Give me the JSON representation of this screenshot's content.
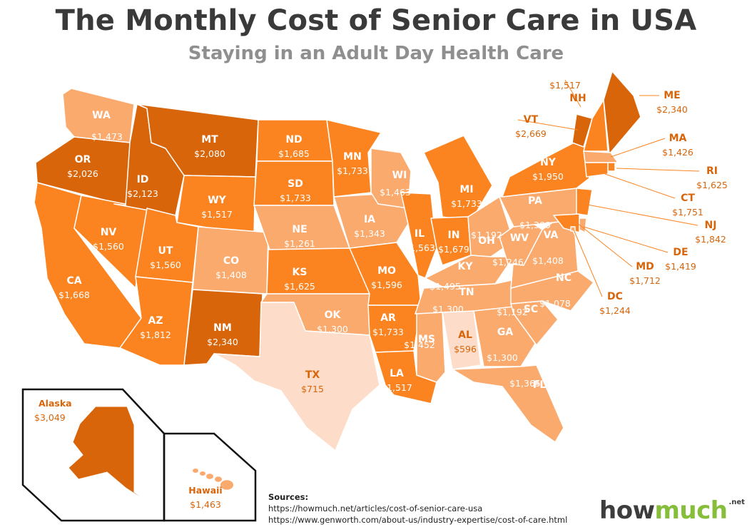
{
  "title": "The Monthly Cost of Senior Care in USA",
  "subtitle": "Staying in an Adult Day Health Care",
  "colors": {
    "darkest": "#d9650a",
    "dark": "#fb8421",
    "medium": "#fbaa6e",
    "light": "#fcc8a4",
    "lightest": "#fdddc9",
    "border": "#ffffff",
    "label_dark_bg": "#ffffff",
    "label_light_bg": "#d9650a"
  },
  "states": [
    {
      "code": "WA",
      "value": "$1,473",
      "tier": "medium"
    },
    {
      "code": "OR",
      "value": "$2,026",
      "tier": "darkest"
    },
    {
      "code": "CA",
      "value": "$1,668",
      "tier": "dark"
    },
    {
      "code": "NV",
      "value": "$1,560",
      "tier": "dark"
    },
    {
      "code": "ID",
      "value": "$2,123",
      "tier": "darkest"
    },
    {
      "code": "MT",
      "value": "$2,080",
      "tier": "darkest"
    },
    {
      "code": "WY",
      "value": "$1,517",
      "tier": "dark"
    },
    {
      "code": "UT",
      "value": "$1,560",
      "tier": "dark"
    },
    {
      "code": "AZ",
      "value": "$1,812",
      "tier": "dark"
    },
    {
      "code": "CO",
      "value": "$1,408",
      "tier": "medium"
    },
    {
      "code": "NM",
      "value": "$2,340",
      "tier": "darkest"
    },
    {
      "code": "ND",
      "value": "$1,685",
      "tier": "dark"
    },
    {
      "code": "SD",
      "value": "$1,733",
      "tier": "dark"
    },
    {
      "code": "NE",
      "value": "$1,261",
      "tier": "medium"
    },
    {
      "code": "KS",
      "value": "$1,625",
      "tier": "dark"
    },
    {
      "code": "OK",
      "value": "$1,300",
      "tier": "medium"
    },
    {
      "code": "TX",
      "value": "$715",
      "tier": "lightest"
    },
    {
      "code": "MN",
      "value": "$1,733",
      "tier": "dark"
    },
    {
      "code": "IA",
      "value": "$1,343",
      "tier": "medium"
    },
    {
      "code": "MO",
      "value": "$1,596",
      "tier": "dark"
    },
    {
      "code": "AR",
      "value": "$1,733",
      "tier": "dark"
    },
    {
      "code": "LA",
      "value": "$1,517",
      "tier": "dark"
    },
    {
      "code": "WI",
      "value": "$1,463",
      "tier": "medium"
    },
    {
      "code": "IL",
      "value": "$1,563",
      "tier": "dark"
    },
    {
      "code": "MI",
      "value": "$1,733",
      "tier": "dark"
    },
    {
      "code": "IN",
      "value": "$1,679",
      "tier": "dark"
    },
    {
      "code": "OH",
      "value": "$1,192",
      "tier": "medium"
    },
    {
      "code": "KY",
      "value": "$1,495",
      "tier": "medium"
    },
    {
      "code": "TN",
      "value": "$1,300",
      "tier": "medium"
    },
    {
      "code": "MS",
      "value": "$1,452",
      "tier": "medium"
    },
    {
      "code": "AL",
      "value": "$596",
      "tier": "lightest"
    },
    {
      "code": "GA",
      "value": "$1,300",
      "tier": "medium"
    },
    {
      "code": "FL",
      "value": "$1,365",
      "tier": "medium"
    },
    {
      "code": "SC",
      "value": "$1,192",
      "tier": "medium"
    },
    {
      "code": "NC",
      "value": "$1,078",
      "tier": "medium"
    },
    {
      "code": "VA",
      "value": "$1,408",
      "tier": "medium"
    },
    {
      "code": "WV",
      "value": "$1,246",
      "tier": "medium"
    },
    {
      "code": "PA",
      "value": "$1,300",
      "tier": "medium"
    },
    {
      "code": "NY",
      "value": "$1,950",
      "tier": "dark"
    },
    {
      "code": "VT",
      "value": "$2,669",
      "tier": "darkest"
    },
    {
      "code": "NH",
      "value": "$1,517",
      "tier": "dark"
    },
    {
      "code": "ME",
      "value": "$2,340",
      "tier": "darkest"
    },
    {
      "code": "MA",
      "value": "$1,426",
      "tier": "medium"
    },
    {
      "code": "RI",
      "value": "$1,625",
      "tier": "dark"
    },
    {
      "code": "CT",
      "value": "$1,751",
      "tier": "dark"
    },
    {
      "code": "NJ",
      "value": "$1,842",
      "tier": "dark"
    },
    {
      "code": "DE",
      "value": "$1,419",
      "tier": "medium"
    },
    {
      "code": "MD",
      "value": "$1,712",
      "tier": "dark"
    },
    {
      "code": "DC",
      "value": "$1,244",
      "tier": "medium"
    }
  ],
  "insets": [
    {
      "name": "Alaska",
      "value": "$3,049",
      "tier": "darkest"
    },
    {
      "name": "Hawaii",
      "value": "$1,463",
      "tier": "medium"
    }
  ],
  "sources": {
    "heading": "Sources:",
    "lines": [
      "https://howmuch.net/articles/cost-of-senior-care-usa",
      "https://www.genworth.com/about-us/industry-expertise/cost-of-care.html"
    ]
  },
  "logo": {
    "part1": "how",
    "part2": "much",
    "suffix": ".net"
  }
}
